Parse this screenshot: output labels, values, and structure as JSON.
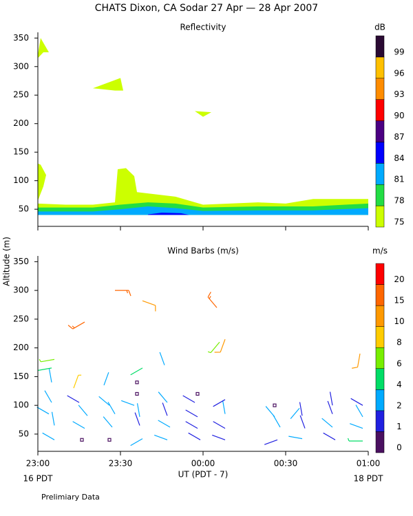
{
  "title": "CHATS Dixon, CA  Sodar  27 Apr — 28 Apr 2007",
  "x_label": "UT  (PDT - 7)",
  "y_label": "Altitude (m)",
  "start_label": "16 PDT",
  "end_label": "18 PDT",
  "footnote": "Prelimiary Data",
  "chart_data": [
    {
      "type": "contour",
      "title": "Reflectivity",
      "xlim": [
        0,
        120
      ],
      "xticks": [
        0,
        30,
        60,
        90,
        120
      ],
      "ylim": [
        20,
        360
      ],
      "yticks": [
        50,
        100,
        150,
        200,
        250,
        300,
        350
      ],
      "colorbar": {
        "title": "dB",
        "levels": [
          75,
          78,
          81,
          84,
          87,
          90,
          93,
          96,
          99
        ],
        "colors": [
          "#ccff00",
          "#22dd44",
          "#00aaff",
          "#0000ff",
          "#4b0082",
          "#ff0000",
          "#ff8c00",
          "#ffc000",
          "#2a0a33"
        ]
      },
      "regions": [
        {
          "level": 75,
          "x": [
            0,
            10,
            20,
            28,
            29,
            32,
            35,
            36,
            50,
            60,
            80,
            90,
            100,
            120,
            120,
            0
          ],
          "y": [
            60,
            58,
            58,
            62,
            120,
            122,
            108,
            80,
            72,
            58,
            62,
            60,
            68,
            68,
            40,
            40
          ]
        },
        {
          "level": 75,
          "x": [
            0,
            2,
            3,
            1,
            0
          ],
          "y": [
            65,
            90,
            110,
            128,
            130
          ]
        },
        {
          "level": 75,
          "x": [
            0,
            1,
            4,
            2,
            0
          ],
          "y": [
            320,
            350,
            325,
            325,
            315
          ]
        },
        {
          "level": 75,
          "x": [
            20,
            30,
            31,
            28
          ],
          "y": [
            262,
            280,
            258,
            258
          ]
        },
        {
          "level": 75,
          "x": [
            57,
            63,
            60
          ],
          "y": [
            222,
            220,
            212
          ]
        },
        {
          "level": 78,
          "x": [
            0,
            20,
            30,
            40,
            50,
            60,
            80,
            100,
            120,
            120,
            0
          ],
          "y": [
            53,
            53,
            58,
            62,
            60,
            53,
            55,
            55,
            60,
            40,
            40
          ]
        },
        {
          "level": 81,
          "x": [
            0,
            20,
            30,
            40,
            50,
            60,
            80,
            100,
            120,
            120,
            0
          ],
          "y": [
            46,
            46,
            50,
            55,
            52,
            47,
            48,
            48,
            52,
            40,
            40
          ]
        },
        {
          "level": 84,
          "x": [
            40,
            45,
            52,
            55,
            40
          ],
          "y": [
            41,
            44,
            43,
            40,
            40
          ]
        }
      ]
    },
    {
      "type": "barbs",
      "title": "Wind Barbs (m/s)",
      "xlim": [
        0,
        120
      ],
      "xticks": [
        {
          "value": 0,
          "label": "23:00"
        },
        {
          "value": 30,
          "label": "23:30"
        },
        {
          "value": 60,
          "label": "00:00"
        },
        {
          "value": 90,
          "label": "00:30"
        },
        {
          "value": 120,
          "label": "01:00"
        }
      ],
      "ylim": [
        20,
        360
      ],
      "yticks": [
        50,
        100,
        150,
        200,
        250,
        300,
        350
      ],
      "colorbar": {
        "title": "m/s",
        "levels": [
          0,
          1,
          2,
          4,
          6,
          8,
          10,
          15,
          20
        ],
        "colors": [
          "#4a1060",
          "#2020e0",
          "#00aaff",
          "#00dd66",
          "#77ee00",
          "#ffcc00",
          "#ff9900",
          "#ff6600",
          "#ff0000"
        ]
      },
      "barbs": {
        "x": [
          6,
          16,
          26,
          38,
          47,
          59,
          68,
          87,
          96,
          108,
          118,
          6,
          17,
          27,
          37,
          48,
          58,
          68,
          88,
          97,
          107,
          118,
          4,
          18,
          28,
          37,
          47,
          58,
          68,
          86,
          96,
          107,
          118,
          5,
          15,
          26,
          35,
          47,
          57,
          68,
          86,
          95,
          107,
          118,
          5,
          24,
          36,
          36,
          58,
          13,
          5,
          6,
          38,
          46,
          28,
          38,
          17,
          65,
          66,
          68,
          117
        ],
        "y": [
          40,
          40,
          40,
          42,
          40,
          40,
          40,
          40,
          42,
          40,
          38,
          65,
          60,
          62,
          65,
          62,
          60,
          60,
          62,
          60,
          62,
          60,
          85,
          82,
          85,
          80,
          82,
          80,
          85,
          80,
          82,
          85,
          80,
          105,
          105,
          100,
          100,
          105,
          105,
          110,
          100,
          95,
          100,
          100,
          140,
          135,
          120,
          140,
          120,
          130,
          165,
          180,
          165,
          170,
          300,
          282,
          245,
          270,
          210,
          215,
          190
        ],
        "speed": [
          3,
          0,
          0,
          3,
          3,
          1,
          1,
          1,
          3,
          1,
          5,
          3,
          2,
          2,
          1,
          2,
          1,
          1,
          3,
          1,
          2,
          2,
          2,
          3,
          2,
          2,
          1,
          1,
          3,
          2,
          1,
          1,
          2,
          2,
          1,
          2,
          2,
          2,
          1,
          1,
          0,
          2,
          1,
          1,
          2,
          2,
          0,
          0,
          0,
          9,
          4,
          6,
          4,
          2,
          16,
          11,
          16,
          16,
          6,
          11,
          11
        ],
        "direction": [
          300,
          0,
          0,
          240,
          290,
          300,
          290,
          250,
          280,
          300,
          270,
          350,
          300,
          320,
          340,
          300,
          300,
          300,
          330,
          340,
          310,
          290,
          300,
          320,
          330,
          350,
          340,
          300,
          350,
          320,
          350,
          340,
          330,
          330,
          300,
          310,
          290,
          320,
          300,
          240,
          0,
          220,
          350,
          300,
          350,
          20,
          0,
          0,
          0,
          20,
          260,
          260,
          240,
          340,
          90,
          110,
          240,
          320,
          220,
          200,
          190
        ]
      }
    }
  ]
}
